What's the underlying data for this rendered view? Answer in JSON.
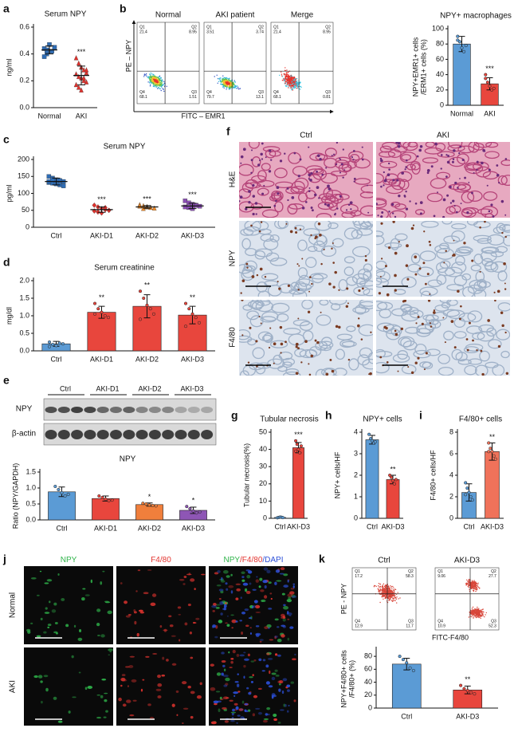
{
  "figure": {
    "panel_labels": [
      "a",
      "b",
      "c",
      "d",
      "e",
      "f",
      "g",
      "h",
      "i",
      "j",
      "k"
    ],
    "flow_b": {
      "y_label": "PE – NPY",
      "x_label": "FITC – EMR1",
      "plots": [
        {
          "title": "Normal",
          "quadrants": [
            {
              "name": "Q1",
              "value": 21.4
            },
            {
              "name": "Q2",
              "value": 8.95
            },
            {
              "name": "Q4",
              "value": 68.1
            },
            {
              "name": "Q3",
              "value": 1.51
            }
          ]
        },
        {
          "title": "AKI patient",
          "quadrants": [
            {
              "name": "Q1",
              "value": 3.51
            },
            {
              "name": "Q2",
              "value": 3.74
            },
            {
              "name": "Q4",
              "value": 79.7
            },
            {
              "name": "Q3",
              "value": 13.1
            }
          ]
        },
        {
          "title": "Merge",
          "quadrants": [
            {
              "name": "Q1",
              "value": 21.4
            },
            {
              "name": "Q2",
              "value": 8.95
            },
            {
              "name": "Q4",
              "value": 68.1
            },
            {
              "name": "Q3",
              "value": 0.81
            }
          ]
        }
      ]
    },
    "western": {
      "lanes": [
        "Ctrl",
        "AKI-D1",
        "AKI-D2",
        "AKI-D3"
      ],
      "rows": [
        "NPY",
        "β-actin"
      ]
    },
    "histology": {
      "columns": [
        "Ctrl",
        "AKI"
      ],
      "rows": [
        "H&E",
        "NPY",
        "F4/80"
      ]
    },
    "immunofluorescence": {
      "columns": [
        {
          "parts": [
            {
              "text": "NPY",
              "color": "#2fb44a"
            }
          ]
        },
        {
          "parts": [
            {
              "text": "F4/80",
              "color": "#e3342f"
            }
          ]
        },
        {
          "parts": [
            {
              "text": "NPY",
              "color": "#2fb44a"
            },
            {
              "text": "/F4/80",
              "color": "#e3342f"
            },
            {
              "text": "/DAPI",
              "color": "#2b4fd8"
            }
          ]
        }
      ],
      "rows": [
        "Normal",
        "AKI"
      ]
    },
    "flow_k": {
      "y_label": "PE - NPY",
      "x_label": "FITC-F4/80",
      "plots": [
        {
          "title": "Ctrl",
          "quadrants": [
            {
              "name": "Q1",
              "value": 17.2
            },
            {
              "name": "Q2",
              "value": 58.3
            },
            {
              "name": "Q4",
              "value": 12.9
            },
            {
              "name": "Q3",
              "value": 11.7
            }
          ]
        },
        {
          "title": "AKI-D3",
          "quadrants": [
            {
              "name": "Q1",
              "value": 9.06
            },
            {
              "name": "Q2",
              "value": 27.7
            },
            {
              "name": "Q4",
              "value": 10.9
            },
            {
              "name": "Q3",
              "value": 52.3
            }
          ]
        }
      ]
    }
  },
  "chart_data": [
    {
      "type": "dotplot",
      "title": "Serum NPY",
      "y_label": [
        "ng/ml"
      ],
      "categories": [
        "Normal",
        "AKI"
      ],
      "points": [
        [
          0.44,
          0.4,
          0.47,
          0.42,
          0.45,
          0.38,
          0.43
        ],
        [
          0.37,
          0.33,
          0.3,
          0.28,
          0.26,
          0.25,
          0.23,
          0.22,
          0.2,
          0.19,
          0.17,
          0.15,
          0.13,
          0.22,
          0.28
        ]
      ],
      "means": [
        0.43,
        0.24
      ],
      "sds": [
        0.03,
        0.07
      ],
      "colors": [
        "#2f6db5",
        "#e0312c"
      ],
      "markers": [
        "square",
        "triangle"
      ],
      "annotations": [
        null,
        "***"
      ],
      "ylim": [
        0,
        0.6
      ],
      "yticks": [
        {
          "value": 0,
          "label": "0.0"
        },
        0.2,
        0.4,
        0.6
      ]
    },
    {
      "type": "bar",
      "title": "NPY+ macrophages",
      "y_label": [
        "NPY+EMR1+ cells",
        "/ERM1+ cells (%)"
      ],
      "categories": [
        "Normal",
        "AKI"
      ],
      "values": [
        80,
        28
      ],
      "errors": [
        10,
        8
      ],
      "points": [
        [
          90,
          83,
          75,
          70,
          78,
          85
        ],
        [
          40,
          30,
          25,
          20,
          22,
          35
        ]
      ],
      "colors": [
        "#5b9bd5",
        "#e8463d"
      ],
      "annotations": [
        null,
        "***"
      ],
      "ylim": [
        0,
        100
      ],
      "yticks": [
        0,
        20,
        40,
        60,
        80,
        100
      ]
    },
    {
      "type": "dotplot",
      "title": "Serum NPY",
      "y_label": [
        "pg/ml"
      ],
      "categories": [
        "Ctrl",
        "AKI-D1",
        "AKI-D2",
        "AKI-D3"
      ],
      "points": [
        [
          150,
          145,
          140,
          138,
          135,
          132,
          130,
          128,
          125,
          122,
          135,
          142
        ],
        [
          65,
          60,
          55,
          52,
          50,
          48,
          45,
          42,
          58,
          50
        ],
        [
          66,
          63,
          60,
          58,
          56,
          62,
          55,
          60
        ],
        [
          78,
          72,
          68,
          65,
          62,
          60,
          58,
          55,
          64
        ]
      ],
      "means": [
        135,
        52,
        60,
        63
      ],
      "sds": [
        10,
        8,
        4,
        8
      ],
      "colors": [
        "#2f6db5",
        "#e0312c",
        "#f28c28",
        "#8a4fb3"
      ],
      "markers": [
        "square",
        "diamond",
        "triangle",
        "square"
      ],
      "annotations": [
        null,
        "***",
        "***",
        "***"
      ],
      "ylim": [
        0,
        200
      ],
      "yticks": [
        0,
        50,
        100,
        150,
        200
      ]
    },
    {
      "type": "bar",
      "title": "Serum creatinine",
      "y_label": [
        "mg/dl"
      ],
      "categories": [
        "Ctrl",
        "AKI-D1",
        "AKI-D2",
        "AKI-D3"
      ],
      "values": [
        0.2,
        1.1,
        1.27,
        1.02
      ],
      "errors": [
        0.07,
        0.17,
        0.33,
        0.25
      ],
      "points": [
        [
          0.25,
          0.18,
          0.15,
          0.22,
          0.2,
          0.12
        ],
        [
          1.35,
          1.2,
          1.1,
          1.0,
          0.95,
          1.05
        ],
        [
          1.7,
          1.5,
          1.3,
          1.2,
          1.05,
          0.9
        ],
        [
          1.35,
          1.2,
          1.05,
          0.95,
          0.8,
          0.7
        ]
      ],
      "colors": [
        "#5b9bd5",
        "#e8463d",
        "#e8463d",
        "#e8463d"
      ],
      "annotations": [
        null,
        "**",
        "**",
        "**"
      ],
      "ylim": [
        0,
        2
      ],
      "yticks": [
        {
          "value": 0,
          "label": "0.0"
        },
        0.5,
        {
          "value": 1,
          "label": "1.0"
        },
        1.5,
        {
          "value": 2,
          "label": "2.0"
        }
      ]
    },
    {
      "type": "bar",
      "title": "NPY",
      "y_label": [
        "Ratio (NPY/GAPDH)"
      ],
      "categories": [
        "Ctrl",
        "AKI-D1",
        "AKI-D2",
        "AKI-D3"
      ],
      "values": [
        0.88,
        0.67,
        0.48,
        0.3
      ],
      "errors": [
        0.15,
        0.08,
        0.05,
        0.1
      ],
      "points": [
        [
          1.05,
          0.95,
          0.85,
          0.75,
          0.8
        ],
        [
          0.75,
          0.7,
          0.65,
          0.6,
          0.62
        ],
        [
          0.52,
          0.5,
          0.47,
          0.45,
          0.44
        ],
        [
          0.42,
          0.35,
          0.28,
          0.22,
          0.25
        ]
      ],
      "colors": [
        "#5b9bd5",
        "#e8463d",
        "#f07f3c",
        "#8e56b5"
      ],
      "annotations": [
        null,
        null,
        "*",
        "*"
      ],
      "ylim": [
        0,
        1.5
      ],
      "yticks": [
        {
          "value": 0,
          "label": "0.0"
        },
        0.5,
        {
          "value": 1,
          "label": "1.0"
        },
        1.5
      ]
    },
    {
      "type": "bar",
      "title": "Tubular necrosis",
      "y_label": [
        "Tubular necrosis(%)"
      ],
      "categories": [
        "Ctrl",
        "AKI-D3"
      ],
      "values": [
        0.5,
        41
      ],
      "errors": [
        0.3,
        3
      ],
      "points": [
        [
          0.3,
          0.5,
          0.7,
          0.6,
          0.4
        ],
        [
          45,
          43,
          40,
          38,
          42,
          39
        ]
      ],
      "colors": [
        "#5b9bd5",
        "#e8463d"
      ],
      "annotations": [
        null,
        "***"
      ],
      "ylim": [
        0,
        50
      ],
      "yticks": [
        0,
        10,
        20,
        30,
        40,
        50
      ]
    },
    {
      "type": "bar",
      "title": "NPY+ cells",
      "y_label": [
        "NPY+ cells/HF"
      ],
      "categories": [
        "Ctrl",
        "AKI-D3"
      ],
      "values": [
        3.65,
        1.8
      ],
      "errors": [
        0.2,
        0.2
      ],
      "points": [
        [
          3.9,
          3.7,
          3.6,
          3.5,
          3.55
        ],
        [
          2.0,
          1.9,
          1.75,
          1.6,
          1.8
        ]
      ],
      "colors": [
        "#5b9bd5",
        "#e8463d"
      ],
      "annotations": [
        null,
        "**"
      ],
      "ylim": [
        0,
        4
      ],
      "yticks": [
        0,
        1,
        2,
        3,
        4
      ]
    },
    {
      "type": "bar",
      "title": "F4/80+ cells",
      "y_label": [
        "F4/80+ cells/HF"
      ],
      "categories": [
        "Ctrl",
        "AKI-D3"
      ],
      "values": [
        2.4,
        6.2
      ],
      "errors": [
        0.8,
        0.8
      ],
      "points": [
        [
          3.3,
          2.8,
          2.4,
          2.0,
          1.7,
          2.2
        ],
        [
          7.0,
          6.5,
          6.2,
          5.8,
          5.5,
          6.2
        ]
      ],
      "colors": [
        "#5b9bd5",
        "#f0725a"
      ],
      "annotations": [
        null,
        "**"
      ],
      "ylim": [
        0,
        8
      ],
      "yticks": [
        0,
        2,
        4,
        6,
        8
      ]
    },
    {
      "type": "bar",
      "y_label": [
        "NPY+F4/80+ cells",
        "/F4/80+ (%)"
      ],
      "categories": [
        "Ctrl",
        "AKI-D3"
      ],
      "values": [
        68,
        28
      ],
      "errors": [
        9,
        6
      ],
      "points": [
        [
          80,
          75,
          70,
          62,
          58
        ],
        [
          35,
          30,
          27,
          24,
          22
        ]
      ],
      "colors": [
        "#5b9bd5",
        "#e8463d"
      ],
      "annotations": [
        null,
        "**"
      ],
      "ylim": [
        0,
        90
      ],
      "yticks": [
        0,
        20,
        40,
        60,
        80
      ]
    }
  ]
}
